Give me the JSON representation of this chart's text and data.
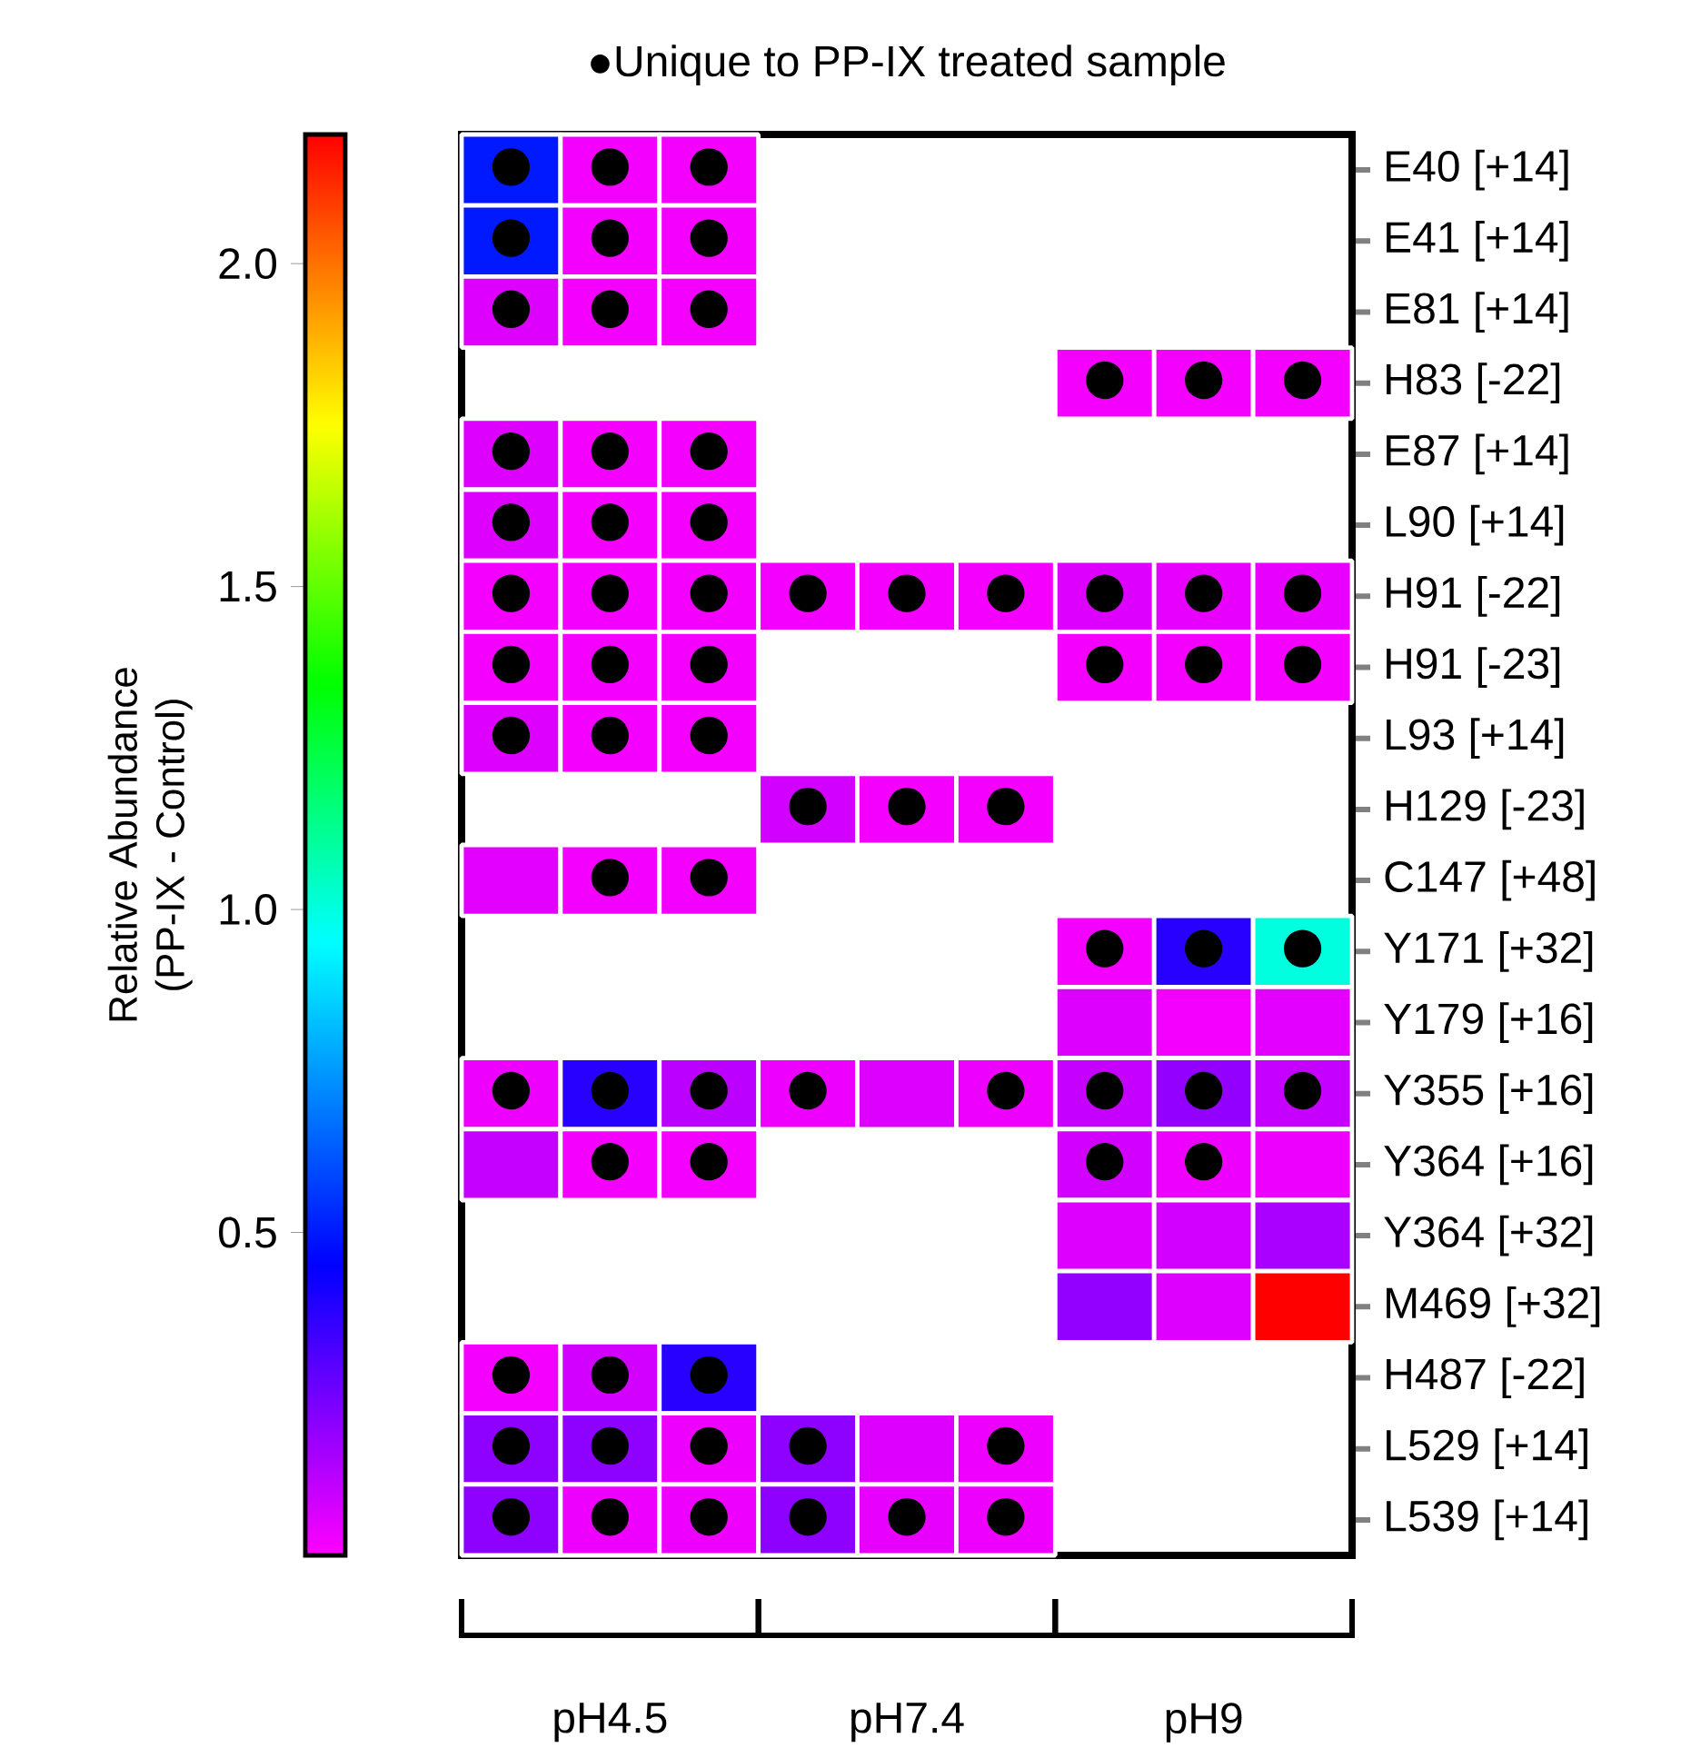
{
  "chart_data": {
    "type": "heatmap",
    "annotations": [
      "●Unique to PP-IX treated sample"
    ],
    "categories": [
      null,
      "pH4.5",
      null,
      null,
      "pH7.4",
      null,
      null,
      "pH9",
      null
    ],
    "y_categories": [
      "E40 [+14]",
      "E41 [+14]",
      "E81 [+14]",
      "H83 [-22]",
      "E87 [+14]",
      "L90 [+14]",
      "H91 [-22]",
      "H91 [-23]",
      "L93 [+14]",
      "H129 [-23]",
      "C147 [+48]",
      "Y171 [+32]",
      "Y179 [+16]",
      "Y355 [+16]",
      "Y364 [+16]",
      "Y364 [+32]",
      "M469 [+32]",
      "H487 [-22]",
      "L529 [+14]",
      "L539 [+14]"
    ],
    "cells": [
      [
        0.5,
        0.02,
        0.02,
        null,
        null,
        null,
        null,
        null,
        null
      ],
      [
        0.5,
        0.02,
        0.02,
        null,
        null,
        null,
        null,
        null,
        null
      ],
      [
        0.06,
        0.02,
        0.02,
        null,
        null,
        null,
        null,
        null,
        null
      ],
      [
        null,
        null,
        null,
        null,
        null,
        null,
        0.02,
        0.02,
        0.02
      ],
      [
        0.06,
        0.02,
        0.02,
        null,
        null,
        null,
        null,
        null,
        null
      ],
      [
        0.06,
        0.02,
        0.02,
        null,
        null,
        null,
        null,
        null,
        null
      ],
      [
        0.02,
        0.02,
        0.02,
        0.02,
        0.02,
        0.02,
        0.06,
        0.04,
        0.04
      ],
      [
        0.02,
        0.02,
        0.02,
        null,
        null,
        null,
        0.02,
        0.02,
        0.02
      ],
      [
        0.06,
        0.02,
        0.02,
        null,
        null,
        null,
        null,
        null,
        null
      ],
      [
        null,
        null,
        null,
        0.08,
        0.02,
        0.02,
        null,
        null,
        null
      ],
      [
        0.05,
        0.02,
        0.02,
        null,
        null,
        null,
        null,
        null,
        null
      ],
      [
        null,
        null,
        null,
        null,
        null,
        null,
        0.02,
        0.38,
        1.0
      ],
      [
        null,
        null,
        null,
        null,
        null,
        null,
        0.06,
        0.02,
        0.05
      ],
      [
        0.03,
        0.38,
        0.12,
        0.03,
        0.06,
        0.03,
        0.1,
        0.19,
        0.1
      ],
      [
        0.1,
        0.02,
        0.02,
        null,
        null,
        null,
        0.08,
        0.03,
        0.03
      ],
      [
        null,
        null,
        null,
        null,
        null,
        null,
        0.06,
        0.08,
        0.15
      ],
      [
        null,
        null,
        null,
        null,
        null,
        null,
        0.19,
        0.06,
        2.2
      ],
      [
        0.02,
        0.08,
        0.38,
        null,
        null,
        null,
        null,
        null,
        null
      ],
      [
        0.2,
        0.2,
        0.03,
        0.2,
        0.06,
        0.03,
        null,
        null,
        null
      ],
      [
        0.2,
        0.03,
        0.03,
        0.2,
        0.04,
        0.03,
        null,
        null,
        null
      ]
    ],
    "cell_labels": [
      [
        "●",
        "●",
        "●",
        null,
        null,
        null,
        null,
        null,
        null
      ],
      [
        "●",
        "●",
        "●",
        null,
        null,
        null,
        null,
        null,
        null
      ],
      [
        "●",
        "●",
        "●",
        null,
        null,
        null,
        null,
        null,
        null
      ],
      [
        null,
        null,
        null,
        null,
        null,
        null,
        "●",
        "●",
        "●"
      ],
      [
        "●",
        "●",
        "●",
        null,
        null,
        null,
        null,
        null,
        null
      ],
      [
        "●",
        "●",
        "●",
        null,
        null,
        null,
        null,
        null,
        null
      ],
      [
        "●",
        "●",
        "●",
        "●",
        "●",
        "●",
        "●",
        "●",
        "●"
      ],
      [
        "●",
        "●",
        "●",
        null,
        null,
        null,
        "●",
        "●",
        "●"
      ],
      [
        "●",
        "●",
        "●",
        null,
        null,
        null,
        null,
        null,
        null
      ],
      [
        null,
        null,
        null,
        "●",
        "●",
        "●",
        null,
        null,
        null
      ],
      [
        null,
        "●",
        "●",
        null,
        null,
        null,
        null,
        null,
        null
      ],
      [
        null,
        null,
        null,
        null,
        null,
        null,
        "●",
        "●",
        "●"
      ],
      [
        null,
        null,
        null,
        null,
        null,
        null,
        null,
        null,
        null
      ],
      [
        "●",
        "●",
        "●",
        "●",
        null,
        "●",
        "●",
        "●",
        "●"
      ],
      [
        null,
        "●",
        "●",
        null,
        null,
        null,
        "●",
        "●",
        null
      ],
      [
        null,
        null,
        null,
        null,
        null,
        null,
        null,
        null,
        null
      ],
      [
        null,
        null,
        null,
        null,
        null,
        null,
        null,
        null,
        null
      ],
      [
        "●",
        "●",
        "●",
        null,
        null,
        null,
        null,
        null,
        null
      ],
      [
        "●",
        "●",
        "●",
        "●",
        null,
        "●",
        null,
        null,
        null
      ],
      [
        "●",
        "●",
        "●",
        "●",
        "●",
        "●",
        null,
        null,
        null
      ]
    ],
    "clim": [
      0,
      2.2
    ],
    "cticks": [
      0.5,
      {
        "value": 1,
        "label": "1.0"
      },
      1.5,
      {
        "value": 2,
        "label": "2.0"
      }
    ],
    "clabel": "Relative Abundance\n(PP-IX - Control)"
  }
}
